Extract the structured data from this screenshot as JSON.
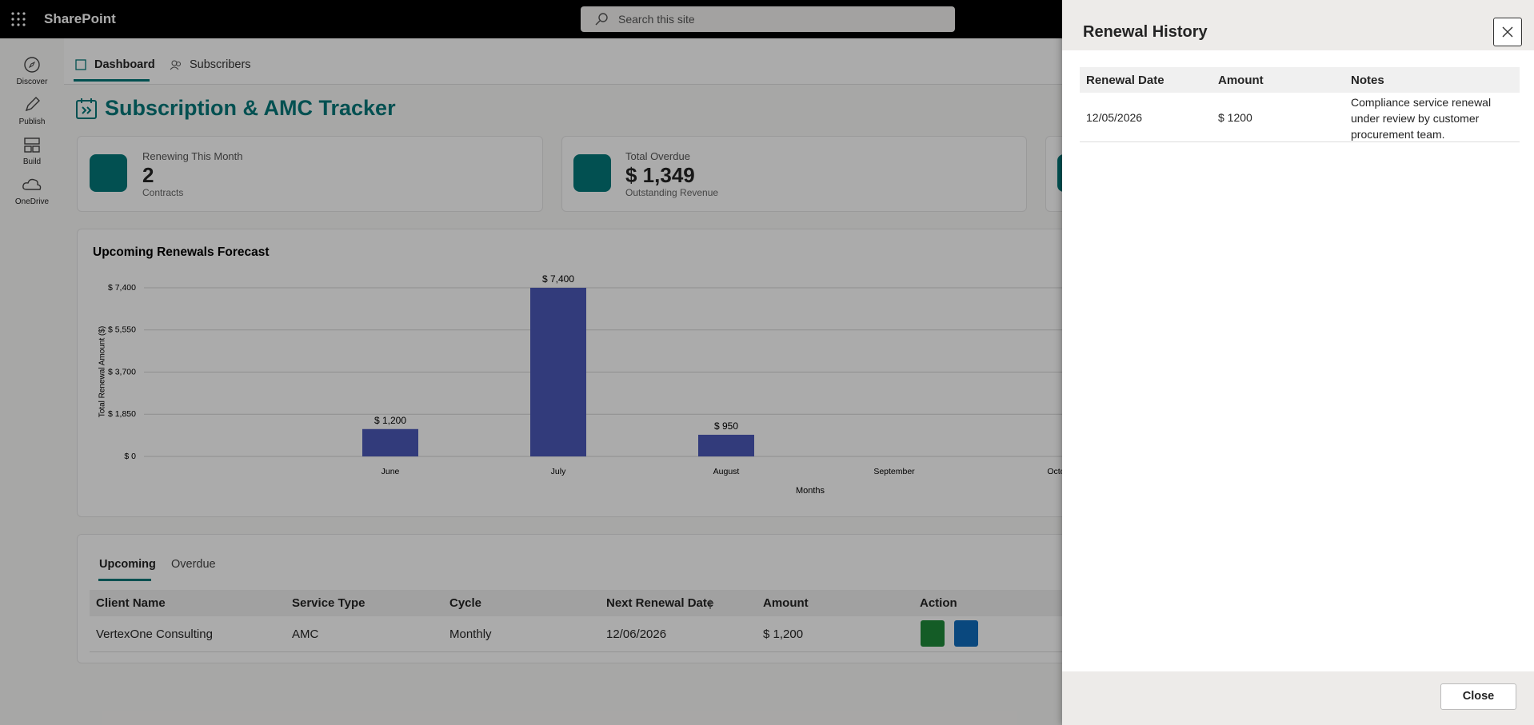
{
  "app": {
    "name": "SharePoint",
    "search_placeholder": "Search this site"
  },
  "rail": [
    "Discover",
    "Publish",
    "Build",
    "OneDrive"
  ],
  "tabs": [
    "Dashboard",
    "Subscribers"
  ],
  "page_title": "Subscription & AMC Tracker",
  "cards": [
    {
      "label": "Renewing This Month",
      "value": "2",
      "caption": "Contracts"
    },
    {
      "label": "Total Overdue",
      "value": "$ 1,349",
      "caption": "Outstanding Revenue"
    }
  ],
  "chart_data": {
    "type": "bar",
    "title": "Upcoming Renewals Forecast",
    "x_label": "Months",
    "y_label": "Total Renewal Amount ($)",
    "categories": [
      "June",
      "July",
      "August",
      "September",
      "October"
    ],
    "values": [
      1200,
      7400,
      950,
      0,
      0
    ],
    "value_labels": [
      "$ 1,200",
      "$ 7,400",
      "$ 950",
      null,
      null
    ],
    "ylim": [
      0,
      7400
    ],
    "yticks": [
      {
        "value": 0,
        "label": "$ 0"
      },
      {
        "value": 1850,
        "label": "$ 1,850"
      },
      {
        "value": 3700,
        "label": "$ 3,700"
      },
      {
        "value": 5550,
        "label": "$ 5,550"
      },
      {
        "value": 7400,
        "label": "$ 7,400"
      }
    ],
    "color": "#4b58b8",
    "grid": true
  },
  "table": {
    "tabs": [
      "Upcoming",
      "Overdue"
    ],
    "columns": [
      "Client Name",
      "Service Type",
      "Cycle",
      "Next Renewal Date",
      "Amount",
      "Action"
    ],
    "rows": [
      [
        "VertexOne Consulting",
        "AMC",
        "Monthly",
        "12/06/2026",
        "$ 1,200"
      ]
    ]
  },
  "panel": {
    "title": "Renewal History",
    "columns": [
      "Renewal Date",
      "Amount",
      "Notes"
    ],
    "rows": [
      [
        "12/05/2026",
        "$ 1200",
        "Compliance service renewal under review by customer procurement team."
      ]
    ],
    "close": "Close"
  }
}
